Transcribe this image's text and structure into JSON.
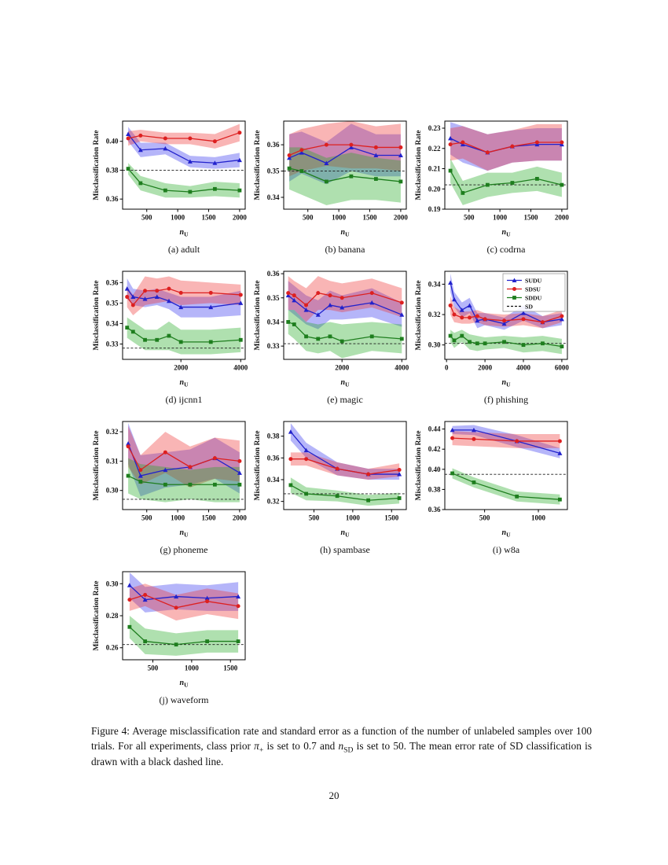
{
  "page": {
    "number": "20"
  },
  "figure_caption": {
    "p1": "Figure 4: Average misclassification rate and standard error as a function of the number of unlabeled samples over 100 trials. For all experiments, class prior ",
    "pi": "π",
    "pi_sub": "+",
    "p2": " is set to 0.7 and ",
    "n": "n",
    "n_sub": "SD",
    "p3": " is set to 50. The mean error rate of SD classification is drawn with a black dashed line."
  },
  "axis": {
    "ylabel": "Misclassification Rate",
    "xlabel": "n",
    "xlabel_sub": "U"
  },
  "legend": {
    "position": "top-right of subplot (f)",
    "entries": [
      {
        "label": "SUDU",
        "color": "#2222cc",
        "band": "#3333ee",
        "marker": "triangle"
      },
      {
        "label": "SDSU",
        "color": "#dd2020",
        "band": "#ee3333",
        "marker": "circle"
      },
      {
        "label": "SDDU",
        "color": "#1e7e1e",
        "band": "#22aa22",
        "marker": "square"
      },
      {
        "label": "SD",
        "color": "#111111",
        "band": "none",
        "marker": "dash"
      }
    ]
  },
  "chart_data": [
    {
      "id": "a",
      "type": "line",
      "label": "(a) adult",
      "x": [
        200,
        400,
        800,
        1200,
        1600,
        2000
      ],
      "xticks": [
        500,
        1000,
        1500,
        2000
      ],
      "xlim": [
        110,
        2090
      ],
      "yticks": [
        0.36,
        0.38,
        0.4
      ],
      "ylim": [
        0.353,
        0.414
      ],
      "sd": 0.38,
      "show_legend": false,
      "series": [
        {
          "name": "SUDU",
          "y": [
            0.405,
            0.394,
            0.395,
            0.386,
            0.385,
            0.387
          ],
          "err": [
            0.005,
            0.005,
            0.004,
            0.004,
            0.004,
            0.005
          ]
        },
        {
          "name": "SDSU",
          "y": [
            0.402,
            0.404,
            0.402,
            0.402,
            0.4,
            0.406
          ],
          "err": [
            0.005,
            0.004,
            0.004,
            0.004,
            0.005,
            0.006
          ]
        },
        {
          "name": "SDDU",
          "y": [
            0.381,
            0.371,
            0.366,
            0.365,
            0.367,
            0.366
          ],
          "err": [
            0.004,
            0.005,
            0.005,
            0.004,
            0.005,
            0.005
          ]
        }
      ]
    },
    {
      "id": "b",
      "type": "line",
      "label": "(b) banana",
      "x": [
        200,
        400,
        800,
        1200,
        1600,
        2000
      ],
      "xticks": [
        500,
        1000,
        1500,
        2000
      ],
      "xlim": [
        110,
        2090
      ],
      "yticks": [
        0.34,
        0.35,
        0.36
      ],
      "ylim": [
        0.3355,
        0.369
      ],
      "sd": 0.35,
      "show_legend": false,
      "series": [
        {
          "name": "SUDU",
          "y": [
            0.355,
            0.357,
            0.353,
            0.359,
            0.356,
            0.356
          ],
          "err": [
            0.009,
            0.008,
            0.008,
            0.009,
            0.008,
            0.008
          ]
        },
        {
          "name": "SDSU",
          "y": [
            0.356,
            0.358,
            0.36,
            0.36,
            0.359,
            0.359
          ],
          "err": [
            0.008,
            0.008,
            0.008,
            0.009,
            0.008,
            0.009
          ]
        },
        {
          "name": "SDDU",
          "y": [
            0.351,
            0.35,
            0.346,
            0.348,
            0.347,
            0.346
          ],
          "err": [
            0.008,
            0.009,
            0.009,
            0.009,
            0.008,
            0.008
          ]
        }
      ]
    },
    {
      "id": "c",
      "type": "line",
      "label": "(c) codrna",
      "x": [
        200,
        400,
        800,
        1200,
        1600,
        2000
      ],
      "xticks": [
        500,
        1000,
        1500,
        2000
      ],
      "xlim": [
        110,
        2090
      ],
      "yticks": [
        0.19,
        0.2,
        0.21,
        0.22,
        0.23
      ],
      "ylim": [
        0.19,
        0.2335
      ],
      "sd": 0.202,
      "show_legend": false,
      "series": [
        {
          "name": "SUDU",
          "y": [
            0.225,
            0.222,
            0.218,
            0.221,
            0.222,
            0.222
          ],
          "err": [
            0.008,
            0.009,
            0.009,
            0.008,
            0.008,
            0.008
          ]
        },
        {
          "name": "SDSU",
          "y": [
            0.222,
            0.223,
            0.218,
            0.221,
            0.223,
            0.223
          ],
          "err": [
            0.008,
            0.008,
            0.009,
            0.008,
            0.009,
            0.009
          ]
        },
        {
          "name": "SDDU",
          "y": [
            0.209,
            0.198,
            0.202,
            0.203,
            0.205,
            0.202
          ],
          "err": [
            0.006,
            0.006,
            0.006,
            0.005,
            0.006,
            0.006
          ]
        }
      ]
    },
    {
      "id": "d",
      "type": "line",
      "label": "(d) ijcnn1",
      "x": [
        200,
        400,
        800,
        1200,
        1600,
        2000,
        3000,
        4000
      ],
      "xticks": [
        2000,
        4000
      ],
      "xlim": [
        50,
        4150
      ],
      "yticks": [
        0.33,
        0.34,
        0.35,
        0.36
      ],
      "ylim": [
        0.3225,
        0.3655
      ],
      "sd": 0.328,
      "show_legend": false,
      "series": [
        {
          "name": "SUDU",
          "y": [
            0.357,
            0.353,
            0.352,
            0.353,
            0.351,
            0.348,
            0.348,
            0.35
          ],
          "err": [
            0.005,
            0.004,
            0.004,
            0.004,
            0.004,
            0.005,
            0.005,
            0.006
          ]
        },
        {
          "name": "SDSU",
          "y": [
            0.353,
            0.349,
            0.356,
            0.356,
            0.357,
            0.355,
            0.355,
            0.354
          ],
          "err": [
            0.005,
            0.005,
            0.007,
            0.006,
            0.006,
            0.006,
            0.005,
            0.005
          ]
        },
        {
          "name": "SDDU",
          "y": [
            0.338,
            0.336,
            0.332,
            0.332,
            0.334,
            0.331,
            0.331,
            0.332
          ],
          "err": [
            0.005,
            0.005,
            0.005,
            0.005,
            0.007,
            0.006,
            0.006,
            0.006
          ]
        }
      ]
    },
    {
      "id": "e",
      "type": "line",
      "label": "(e) magic",
      "x": [
        200,
        400,
        800,
        1200,
        1600,
        2000,
        3000,
        4000
      ],
      "xticks": [
        2000,
        4000
      ],
      "xlim": [
        50,
        4150
      ],
      "yticks": [
        0.33,
        0.34,
        0.35,
        0.36
      ],
      "ylim": [
        0.3245,
        0.361
      ],
      "sd": 0.331,
      "show_legend": false,
      "series": [
        {
          "name": "SUDU",
          "y": [
            0.351,
            0.349,
            0.345,
            0.343,
            0.347,
            0.346,
            0.348,
            0.343
          ],
          "err": [
            0.006,
            0.006,
            0.006,
            0.006,
            0.006,
            0.005,
            0.006,
            0.005
          ]
        },
        {
          "name": "SDSU",
          "y": [
            0.352,
            0.351,
            0.347,
            0.352,
            0.351,
            0.35,
            0.352,
            0.348
          ],
          "err": [
            0.007,
            0.006,
            0.007,
            0.007,
            0.006,
            0.006,
            0.006,
            0.006
          ]
        },
        {
          "name": "SDDU",
          "y": [
            0.34,
            0.339,
            0.334,
            0.333,
            0.334,
            0.332,
            0.334,
            0.333
          ],
          "err": [
            0.005,
            0.006,
            0.006,
            0.006,
            0.006,
            0.007,
            0.006,
            0.006
          ]
        }
      ]
    },
    {
      "id": "f",
      "type": "line",
      "label": "(f) phishing",
      "x": [
        200,
        400,
        800,
        1200,
        1600,
        2000,
        3000,
        4000,
        5000,
        6000
      ],
      "xticks": [
        0,
        2000,
        4000,
        6000
      ],
      "xlim": [
        -90,
        6290
      ],
      "yticks": [
        0.3,
        0.32,
        0.34
      ],
      "ylim": [
        0.2905,
        0.3485
      ],
      "sd": 0.301,
      "show_legend": true,
      "series": [
        {
          "name": "SUDU",
          "y": [
            0.341,
            0.33,
            0.323,
            0.326,
            0.316,
            0.317,
            0.314,
            0.321,
            0.315,
            0.317
          ],
          "err": [
            0.006,
            0.005,
            0.005,
            0.005,
            0.005,
            0.004,
            0.004,
            0.005,
            0.004,
            0.004
          ]
        },
        {
          "name": "SDSU",
          "y": [
            0.326,
            0.32,
            0.318,
            0.318,
            0.319,
            0.317,
            0.316,
            0.317,
            0.315,
            0.319
          ],
          "err": [
            0.006,
            0.005,
            0.004,
            0.004,
            0.004,
            0.004,
            0.004,
            0.004,
            0.004,
            0.004
          ]
        },
        {
          "name": "SDDU",
          "y": [
            0.306,
            0.303,
            0.306,
            0.302,
            0.301,
            0.301,
            0.302,
            0.3,
            0.301,
            0.299
          ],
          "err": [
            0.004,
            0.005,
            0.004,
            0.005,
            0.005,
            0.004,
            0.004,
            0.005,
            0.005,
            0.005
          ]
        }
      ]
    },
    {
      "id": "g",
      "type": "line",
      "label": "(g) phoneme",
      "x": [
        200,
        400,
        800,
        1200,
        1600,
        2000
      ],
      "xticks": [
        500,
        1000,
        1500,
        2000
      ],
      "xlim": [
        110,
        2090
      ],
      "yticks": [
        0.3,
        0.31,
        0.32
      ],
      "ylim": [
        0.2935,
        0.3235
      ],
      "sd": 0.297,
      "show_legend": false,
      "series": [
        {
          "name": "SUDU",
          "y": [
            0.316,
            0.305,
            0.307,
            0.308,
            0.311,
            0.306
          ],
          "err": [
            0.007,
            0.007,
            0.006,
            0.006,
            0.007,
            0.007
          ]
        },
        {
          "name": "SDSU",
          "y": [
            0.315,
            0.307,
            0.313,
            0.308,
            0.311,
            0.31
          ],
          "err": [
            0.007,
            0.005,
            0.007,
            0.007,
            0.007,
            0.007
          ]
        },
        {
          "name": "SDDU",
          "y": [
            0.305,
            0.303,
            0.302,
            0.302,
            0.302,
            0.302
          ],
          "err": [
            0.006,
            0.006,
            0.006,
            0.005,
            0.006,
            0.006
          ]
        }
      ]
    },
    {
      "id": "h",
      "type": "line",
      "label": "(h) spambase",
      "x": [
        200,
        400,
        800,
        1200,
        1600
      ],
      "xticks": [
        500,
        1000,
        1500
      ],
      "xlim": [
        110,
        1690
      ],
      "yticks": [
        0.32,
        0.34,
        0.36,
        0.38
      ],
      "ylim": [
        0.3125,
        0.3935
      ],
      "sd": 0.327,
      "show_legend": false,
      "series": [
        {
          "name": "SUDU",
          "y": [
            0.384,
            0.367,
            0.35,
            0.345,
            0.345
          ],
          "err": [
            0.008,
            0.007,
            0.006,
            0.005,
            0.005
          ]
        },
        {
          "name": "SDSU",
          "y": [
            0.359,
            0.359,
            0.35,
            0.345,
            0.349
          ],
          "err": [
            0.006,
            0.006,
            0.006,
            0.005,
            0.006
          ]
        },
        {
          "name": "SDDU",
          "y": [
            0.335,
            0.327,
            0.325,
            0.321,
            0.323
          ],
          "err": [
            0.007,
            0.006,
            0.005,
            0.005,
            0.005
          ]
        }
      ]
    },
    {
      "id": "i",
      "type": "line",
      "label": "(i) w8a",
      "x": [
        200,
        400,
        800,
        1200
      ],
      "xticks": [
        500,
        1000
      ],
      "xlim": [
        130,
        1270
      ],
      "yticks": [
        0.36,
        0.38,
        0.4,
        0.42,
        0.44
      ],
      "ylim": [
        0.36,
        0.4475
      ],
      "sd": 0.395,
      "show_legend": false,
      "series": [
        {
          "name": "SUDU",
          "y": [
            0.439,
            0.439,
            0.428,
            0.416
          ],
          "err": [
            0.004,
            0.005,
            0.006,
            0.005
          ]
        },
        {
          "name": "SDSU",
          "y": [
            0.431,
            0.43,
            0.428,
            0.428
          ],
          "err": [
            0.007,
            0.007,
            0.007,
            0.007
          ]
        },
        {
          "name": "SDDU",
          "y": [
            0.396,
            0.387,
            0.373,
            0.37
          ],
          "err": [
            0.005,
            0.005,
            0.005,
            0.005
          ]
        }
      ]
    },
    {
      "id": "j",
      "type": "line",
      "label": "(j) waveform",
      "x": [
        200,
        400,
        800,
        1200,
        1600
      ],
      "xticks": [
        500,
        1000,
        1500
      ],
      "xlim": [
        110,
        1690
      ],
      "yticks": [
        0.26,
        0.28,
        0.3
      ],
      "ylim": [
        0.2525,
        0.3075
      ],
      "sd": 0.262,
      "show_legend": false,
      "series": [
        {
          "name": "SUDU",
          "y": [
            0.299,
            0.29,
            0.292,
            0.291,
            0.292
          ],
          "err": [
            0.008,
            0.008,
            0.008,
            0.008,
            0.009
          ]
        },
        {
          "name": "SDSU",
          "y": [
            0.29,
            0.293,
            0.285,
            0.289,
            0.286
          ],
          "err": [
            0.007,
            0.007,
            0.008,
            0.008,
            0.008
          ]
        },
        {
          "name": "SDDU",
          "y": [
            0.273,
            0.264,
            0.262,
            0.264,
            0.264
          ],
          "err": [
            0.007,
            0.008,
            0.007,
            0.007,
            0.007
          ]
        }
      ]
    }
  ]
}
